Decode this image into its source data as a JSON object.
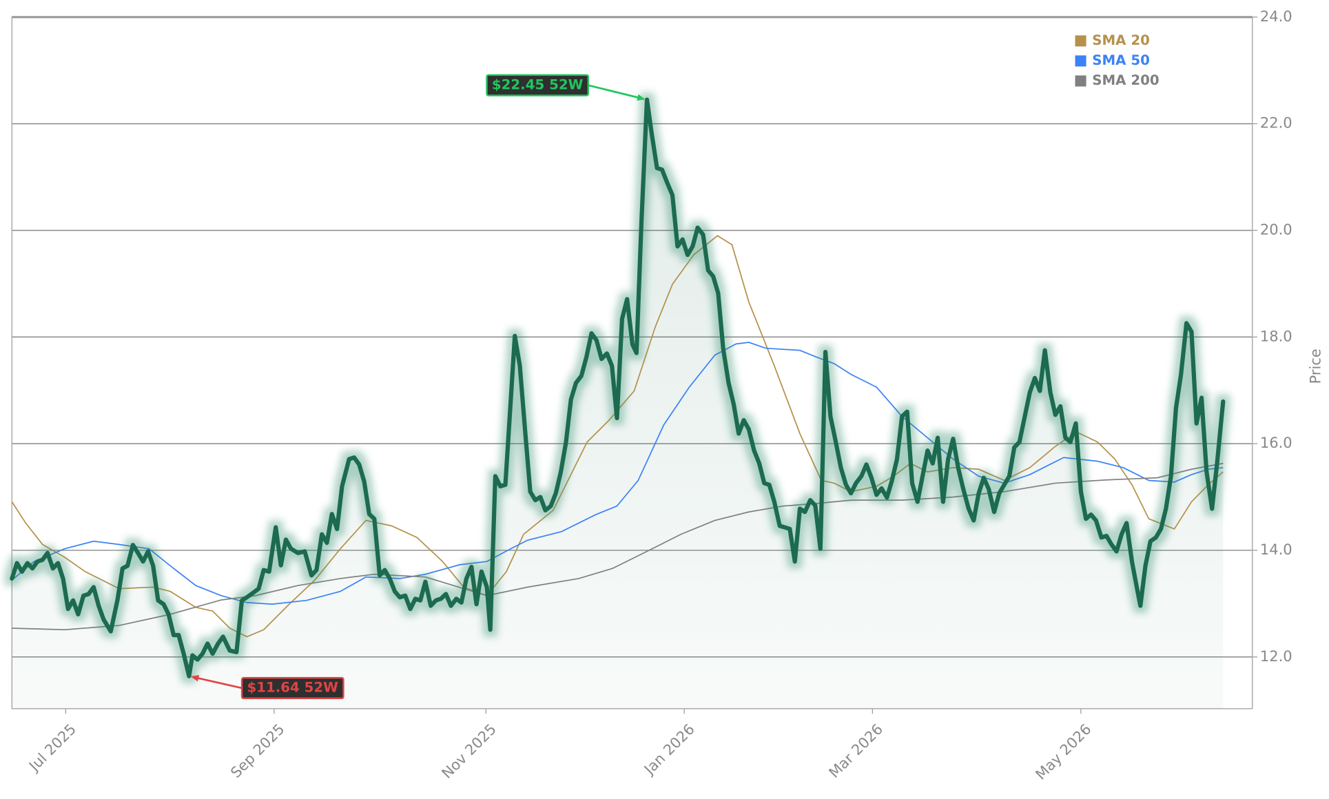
{
  "chart_data": {
    "type": "line",
    "ylabel": "Price",
    "color": "#1a6b50",
    "xlim": [
      0,
      369
    ],
    "ylim": [
      11.03,
      24.0
    ],
    "xticks": [
      {
        "value": 16,
        "label": "Jul 2025"
      },
      {
        "value": 78,
        "label": "Sep 2025"
      },
      {
        "value": 141,
        "label": "Nov 2025"
      },
      {
        "value": 200,
        "label": "Jan 2026"
      },
      {
        "value": 256,
        "label": "Mar 2026"
      },
      {
        "value": 318,
        "label": "May 2026"
      }
    ],
    "yticks": [
      {
        "value": 12,
        "label": "12.0"
      },
      {
        "value": 14,
        "label": "14.0"
      },
      {
        "value": 16,
        "label": "16.0"
      },
      {
        "value": 18,
        "label": "18.0"
      },
      {
        "value": 20,
        "label": "20.0"
      },
      {
        "value": 22,
        "label": "22.0"
      },
      {
        "value": 24,
        "label": "24.0"
      }
    ],
    "grid": true,
    "legend": "upper right",
    "x": [
      0,
      1.5,
      3,
      4.6,
      6.1,
      7.6,
      9.1,
      10.6,
      12.2,
      13.7,
      15.2,
      16.7,
      18.2,
      19.7,
      21.3,
      22.8,
      24.3,
      25.8,
      27.3,
      29.4,
      31.4,
      32.9,
      34.4,
      36,
      37.5,
      39,
      40.5,
      42,
      43.5,
      45.1,
      46.6,
      48.1,
      49.6,
      51.1,
      52.7,
      53.7,
      55.2,
      56.7,
      58.2,
      59.7,
      61.3,
      62.8,
      64.8,
      66.8,
      68.4,
      69.9,
      71.9,
      73.4,
      74.9,
      76.5,
      78.5,
      80,
      81.5,
      83,
      85.1,
      87.1,
      89.1,
      90.6,
      92.2,
      93.7,
      95.2,
      96.7,
      98.2,
      100.3,
      101.8,
      103.3,
      104.8,
      106.3,
      107.8,
      109.4,
      110.9,
      112.4,
      113.9,
      115.4,
      117,
      118.5,
      120,
      121.5,
      123,
      124.6,
      126.1,
      127.6,
      129.1,
      130.6,
      132.2,
      133.7,
      135.2,
      136.7,
      138.2,
      139.7,
      141.3,
      142.3,
      143.8,
      145.3,
      146.8,
      148.4,
      149.6,
      151.1,
      152.7,
      154.2,
      155.7,
      157.2,
      158.7,
      160.3,
      161.8,
      163.3,
      164.8,
      166.3,
      167.8,
      169.4,
      170.9,
      172.4,
      173.9,
      175.4,
      177,
      178.5,
      180,
      181.5,
      183,
      184.6,
      185.8,
      187.3,
      188.9,
      190.4,
      191.9,
      193.4,
      194.9,
      196.5,
      198,
      199.5,
      201,
      202.5,
      204,
      205.6,
      207.1,
      208.6,
      210.1,
      211.6,
      213.2,
      214.7,
      216.2,
      217.7,
      219.2,
      220.8,
      222.3,
      223.8,
      225.3,
      226.8,
      228.4,
      229.9,
      231.4,
      232.9,
      234.4,
      235.9,
      237.5,
      239,
      240.5,
      242,
      243.5,
      245.1,
      246.6,
      248.1,
      249.6,
      251.1,
      252.7,
      254.2,
      255.7,
      257.2,
      258.7,
      260.3,
      261.8,
      263.3,
      264.8,
      266.3,
      267.8,
      269.4,
      270.9,
      272.4,
      273.9,
      275.4,
      277,
      278.5,
      280,
      281.5,
      283,
      284.6,
      286.1,
      287.6,
      289.1,
      290.6,
      292.2,
      293.7,
      295.2,
      296.7,
      298.2,
      299.7,
      301.3,
      302.8,
      304.3,
      305.8,
      307.3,
      308.9,
      310.4,
      311.9,
      313.4,
      314.9,
      316.5,
      318,
      319.5,
      321,
      322.5,
      324.1,
      325.6,
      327.1,
      328.6,
      330.1,
      331.6,
      333.2,
      334.7,
      335.7,
      337.2,
      338.7,
      340.3,
      341.8,
      343.3,
      344.8,
      346.3,
      347.8,
      349.4,
      350.9,
      352.4,
      353.9,
      355.4,
      357,
      358.5,
      360.3
    ],
    "values": [
      13.47,
      13.76,
      13.6,
      13.76,
      13.66,
      13.79,
      13.82,
      13.95,
      13.66,
      13.76,
      13.47,
      12.9,
      13.06,
      12.8,
      13.15,
      13.18,
      13.31,
      12.96,
      12.7,
      12.48,
      13.07,
      13.66,
      13.71,
      14.1,
      13.95,
      13.79,
      13.98,
      13.71,
      13.06,
      12.99,
      12.8,
      12.41,
      12.41,
      12.06,
      11.64,
      12.03,
      11.95,
      12.06,
      12.25,
      12.06,
      12.25,
      12.38,
      12.12,
      12.09,
      13.06,
      13.12,
      13.21,
      13.28,
      13.63,
      13.6,
      14.43,
      13.72,
      14.2,
      14.03,
      13.95,
      13.98,
      13.53,
      13.63,
      14.3,
      14.14,
      14.68,
      14.4,
      15.2,
      15.71,
      15.74,
      15.61,
      15.29,
      14.68,
      14.59,
      13.53,
      13.63,
      13.47,
      13.23,
      13.12,
      13.15,
      12.9,
      13.09,
      13.06,
      13.41,
      12.96,
      13.06,
      13.09,
      13.18,
      12.96,
      13.09,
      13.02,
      13.47,
      13.69,
      12.99,
      13.6,
      13.31,
      12.51,
      15.39,
      15.2,
      15.23,
      16.83,
      18.02,
      17.46,
      16.22,
      15.1,
      14.94,
      15.0,
      14.75,
      14.83,
      15.07,
      15.47,
      16.02,
      16.83,
      17.14,
      17.27,
      17.62,
      18.07,
      17.94,
      17.59,
      17.69,
      17.46,
      16.48,
      18.34,
      18.71,
      17.86,
      17.7,
      20.18,
      22.45,
      21.78,
      21.17,
      21.14,
      20.9,
      20.66,
      19.7,
      19.83,
      19.54,
      19.7,
      20.05,
      19.92,
      19.25,
      19.14,
      18.82,
      17.78,
      17.14,
      16.74,
      16.19,
      16.44,
      16.27,
      15.87,
      15.63,
      15.26,
      15.23,
      14.91,
      14.46,
      14.43,
      14.4,
      13.79,
      14.78,
      14.72,
      14.94,
      14.84,
      14.03,
      17.72,
      16.51,
      16.03,
      15.55,
      15.23,
      15.07,
      15.26,
      15.39,
      15.61,
      15.36,
      15.04,
      15.16,
      14.99,
      15.31,
      15.71,
      16.51,
      16.6,
      15.26,
      14.91,
      15.39,
      15.87,
      15.63,
      16.11,
      14.91,
      15.71,
      16.09,
      15.55,
      15.15,
      14.78,
      14.56,
      15.07,
      15.36,
      15.15,
      14.72,
      15.07,
      15.23,
      15.39,
      15.93,
      16.03,
      16.51,
      16.96,
      17.23,
      16.99,
      17.75,
      16.96,
      16.54,
      16.7,
      16.11,
      16.03,
      16.38,
      15.1,
      14.59,
      14.67,
      14.56,
      14.24,
      14.27,
      14.11,
      13.98,
      14.3,
      14.51,
      13.79,
      13.28,
      12.96,
      13.71,
      14.17,
      14.24,
      14.4,
      14.78,
      15.39,
      16.67,
      17.3,
      18.26,
      18.1,
      16.38,
      16.86,
      15.47,
      14.78,
      15.63,
      16.79
    ],
    "series": [
      {
        "name": "SMA 20",
        "color": "#b5914a",
        "x": [
          0,
          4.1,
          9.1,
          15.7,
          21.8,
          31.9,
          42,
          47.1,
          54.7,
          59.7,
          64.8,
          69.9,
          74.9,
          82.5,
          90.1,
          97.7,
          105.3,
          112.9,
          120.5,
          128.1,
          134.4,
          141.3,
          147.1,
          152.2,
          161,
          171.1,
          177.5,
          185.1,
          191.4,
          196.5,
          202.8,
          209.9,
          214.2,
          219.2,
          226.8,
          234.4,
          240.8,
          244.6,
          249.6,
          257.2,
          262.3,
          267.3,
          272.4,
          280,
          287.6,
          295.2,
          302.8,
          310.4,
          316.7,
          323,
          328.1,
          333.2,
          338.2,
          345.8,
          350.9,
          355.9,
          360.3
        ],
        "values": [
          14.91,
          14.51,
          14.11,
          13.87,
          13.6,
          13.28,
          13.31,
          13.23,
          12.93,
          12.86,
          12.54,
          12.38,
          12.51,
          12.99,
          13.44,
          14.03,
          14.56,
          14.46,
          14.24,
          13.79,
          13.31,
          13.15,
          13.6,
          14.3,
          14.75,
          16.03,
          16.43,
          16.99,
          18.19,
          18.99,
          19.54,
          19.9,
          19.73,
          18.66,
          17.46,
          16.19,
          15.31,
          15.26,
          15.1,
          15.2,
          15.39,
          15.63,
          15.47,
          15.55,
          15.52,
          15.31,
          15.55,
          15.95,
          16.22,
          16.03,
          15.71,
          15.23,
          14.59,
          14.4,
          14.91,
          15.23,
          15.47
        ]
      },
      {
        "name": "SMA 50",
        "color": "#3b82f6",
        "x": [
          0,
          6.6,
          15.7,
          24.3,
          31.9,
          40.8,
          47.1,
          54.7,
          62.3,
          69.9,
          77.5,
          87.6,
          97.7,
          105.3,
          115.4,
          123,
          133.2,
          141.3,
          148.4,
          153.4,
          163.5,
          173.7,
          180,
          186.3,
          193.9,
          201.5,
          209.1,
          215.4,
          219.2,
          224.3,
          234.4,
          239.5,
          244.6,
          249.6,
          257.2,
          264.8,
          272.4,
          280,
          287.6,
          295.2,
          302.8,
          312.9,
          323,
          330.6,
          338.2,
          345.8,
          350.9,
          355.9,
          360.3
        ],
        "values": [
          13.44,
          13.79,
          14.03,
          14.17,
          14.11,
          14.03,
          13.71,
          13.34,
          13.15,
          13.02,
          12.99,
          13.06,
          13.23,
          13.5,
          13.47,
          13.55,
          13.73,
          13.79,
          14.03,
          14.19,
          14.35,
          14.67,
          14.83,
          15.31,
          16.35,
          17.06,
          17.66,
          17.87,
          17.9,
          17.79,
          17.75,
          17.62,
          17.5,
          17.3,
          17.06,
          16.51,
          16.11,
          15.71,
          15.39,
          15.26,
          15.42,
          15.74,
          15.67,
          15.55,
          15.31,
          15.28,
          15.42,
          15.52,
          15.55
        ]
      },
      {
        "name": "SMA 200",
        "color": "#808080",
        "x": [
          0,
          15.7,
          31.9,
          47.1,
          62.3,
          72.4,
          85.1,
          97.7,
          107.8,
          123,
          141.3,
          153.4,
          168.6,
          178.7,
          188.9,
          199,
          209.1,
          219.2,
          229.4,
          239.5,
          249.6,
          264.8,
          280,
          295.2,
          310.4,
          325.6,
          340.8,
          350.9,
          360.3
        ],
        "values": [
          12.54,
          12.51,
          12.59,
          12.8,
          13.07,
          13.15,
          13.34,
          13.47,
          13.55,
          13.5,
          13.15,
          13.31,
          13.47,
          13.66,
          13.98,
          14.3,
          14.56,
          14.72,
          14.83,
          14.88,
          14.94,
          14.94,
          15.0,
          15.1,
          15.26,
          15.32,
          15.36,
          15.52,
          15.63
        ]
      }
    ],
    "annotations": [
      {
        "text": "$22.45 52W",
        "x": 188.9,
        "y": 22.45,
        "color": "#22c55e"
      },
      {
        "text": "$11.64 52W",
        "x": 52.7,
        "y": 11.64,
        "color": "#e04444"
      }
    ]
  }
}
